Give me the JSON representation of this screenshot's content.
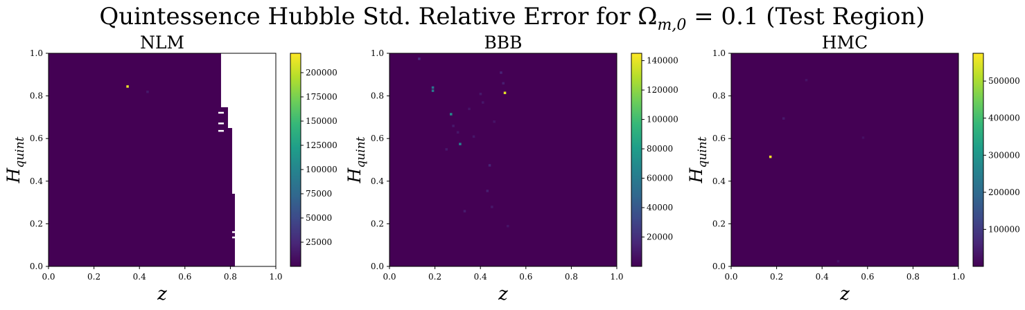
{
  "suptitle": "Quintessence Hubble Std. Relative Error for Ω",
  "suptitle_sub": "m,0",
  "suptitle_tail": " = 0.1 (Test Region)",
  "colors": {
    "background": "#440154",
    "text": "#000000",
    "colormap": [
      "#440154",
      "#482878",
      "#3e4989",
      "#31688e",
      "#26828e",
      "#1f9e89",
      "#35b779",
      "#6ece58",
      "#b5de2b",
      "#fde725"
    ]
  },
  "chart_data": [
    {
      "type": "heatmap",
      "title": "NLM",
      "xlabel": "z",
      "ylabel": "H",
      "ylabel_sub": "quint",
      "xlim": [
        0,
        1
      ],
      "ylim": [
        0,
        1
      ],
      "xticks": [
        "0.0",
        "0.2",
        "0.4",
        "0.6",
        "0.8",
        "1.0"
      ],
      "yticks": [
        "0.0",
        "0.2",
        "0.4",
        "0.6",
        "0.8",
        "1.0"
      ],
      "colorbar": {
        "min": 0,
        "max": 220000,
        "ticks": [
          "25000",
          "50000",
          "75000",
          "100000",
          "125000",
          "150000",
          "175000",
          "200000"
        ],
        "tick_values": [
          25000,
          50000,
          75000,
          100000,
          125000,
          150000,
          175000,
          200000
        ]
      },
      "nan_region": {
        "x_start": 0.82,
        "x_end": 1.0
      },
      "points": [
        {
          "z": 0.347,
          "h": 0.845,
          "value": 215000
        },
        {
          "z": 0.435,
          "h": 0.82,
          "value": 15000
        }
      ]
    },
    {
      "type": "heatmap",
      "title": "BBB",
      "xlabel": "z",
      "ylabel": "H",
      "ylabel_sub": "quint",
      "xlim": [
        0,
        1
      ],
      "ylim": [
        0,
        1
      ],
      "xticks": [
        "0.0",
        "0.2",
        "0.4",
        "0.6",
        "0.8",
        "1.0"
      ],
      "yticks": [
        "0.0",
        "0.2",
        "0.4",
        "0.6",
        "0.8",
        "1.0"
      ],
      "colorbar": {
        "min": 0,
        "max": 145000,
        "ticks": [
          "20000",
          "40000",
          "60000",
          "80000",
          "100000",
          "120000",
          "140000"
        ],
        "tick_values": [
          20000,
          40000,
          60000,
          80000,
          100000,
          120000,
          140000
        ]
      },
      "points": [
        {
          "z": 0.507,
          "h": 0.815,
          "value": 140000
        },
        {
          "z": 0.19,
          "h": 0.84,
          "value": 55000
        },
        {
          "z": 0.19,
          "h": 0.825,
          "value": 60000
        },
        {
          "z": 0.27,
          "h": 0.715,
          "value": 70000
        },
        {
          "z": 0.31,
          "h": 0.575,
          "value": 65000
        },
        {
          "z": 0.13,
          "h": 0.975,
          "value": 20000
        },
        {
          "z": 0.49,
          "h": 0.91,
          "value": 15000
        },
        {
          "z": 0.5,
          "h": 0.86,
          "value": 12000
        },
        {
          "z": 0.4,
          "h": 0.81,
          "value": 10000
        },
        {
          "z": 0.41,
          "h": 0.77,
          "value": 9000
        },
        {
          "z": 0.44,
          "h": 0.475,
          "value": 15000
        },
        {
          "z": 0.43,
          "h": 0.355,
          "value": 12000
        },
        {
          "z": 0.37,
          "h": 0.61,
          "value": 9000
        },
        {
          "z": 0.33,
          "h": 0.26,
          "value": 11000
        },
        {
          "z": 0.25,
          "h": 0.55,
          "value": 10000
        },
        {
          "z": 0.3,
          "h": 0.63,
          "value": 9000
        },
        {
          "z": 0.28,
          "h": 0.66,
          "value": 10000
        },
        {
          "z": 0.35,
          "h": 0.74,
          "value": 8000
        },
        {
          "z": 0.46,
          "h": 0.68,
          "value": 8000
        },
        {
          "z": 0.45,
          "h": 0.28,
          "value": 9000
        },
        {
          "z": 0.52,
          "h": 0.19,
          "value": 8000
        }
      ]
    },
    {
      "type": "heatmap",
      "title": "HMC",
      "xlabel": "z",
      "ylabel": "H",
      "ylabel_sub": "quint",
      "xlim": [
        0,
        1
      ],
      "ylim": [
        0,
        1
      ],
      "xticks": [
        "0.0",
        "0.2",
        "0.4",
        "0.6",
        "0.8",
        "1.0"
      ],
      "yticks": [
        "0.0",
        "0.2",
        "0.4",
        "0.6",
        "0.8",
        "1.0"
      ],
      "colorbar": {
        "min": 0,
        "max": 575000,
        "ticks": [
          "100000",
          "200000",
          "300000",
          "400000",
          "500000"
        ],
        "tick_values": [
          100000,
          200000,
          300000,
          400000,
          500000
        ]
      },
      "points": [
        {
          "z": 0.172,
          "h": 0.515,
          "value": 570000
        },
        {
          "z": 0.23,
          "h": 0.695,
          "value": 40000
        },
        {
          "z": 0.33,
          "h": 0.875,
          "value": 30000
        },
        {
          "z": 0.58,
          "h": 0.605,
          "value": 25000
        },
        {
          "z": 0.47,
          "h": 0.025,
          "value": 30000
        }
      ]
    }
  ]
}
